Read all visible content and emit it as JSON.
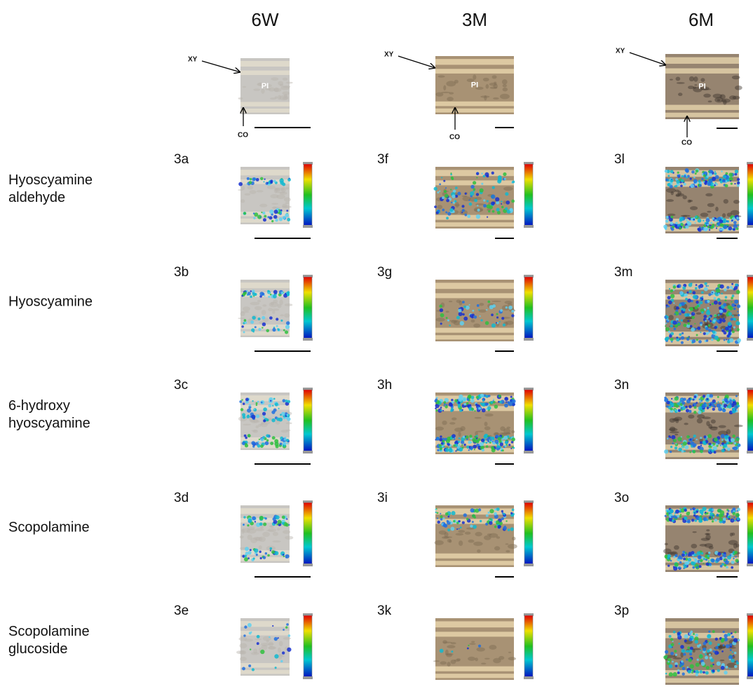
{
  "columns": [
    {
      "header": "6W",
      "xy": "XY",
      "pi": "PI",
      "co": "CO"
    },
    {
      "header": "3M",
      "xy": "XY",
      "pi": "PI",
      "co": "CO"
    },
    {
      "header": "6M",
      "xy": "XY",
      "pi": "PI",
      "co": "CO"
    }
  ],
  "rows": [
    {
      "label": [
        "Hyoscyamine",
        "aldehyde"
      ],
      "panels": [
        "3a",
        "3f",
        "3l"
      ]
    },
    {
      "label": [
        "Hyoscyamine"
      ],
      "panels": [
        "3b",
        "3g",
        "3m"
      ]
    },
    {
      "label": [
        "6-hydroxy",
        "hyoscyamine"
      ],
      "panels": [
        "3c",
        "3h",
        "3n"
      ]
    },
    {
      "label": [
        "Scopolamine"
      ],
      "panels": [
        "3d",
        "3i",
        "3o"
      ]
    },
    {
      "label": [
        "Scopolamine",
        "glucoside"
      ],
      "panels": [
        "3e",
        "3k",
        "3p"
      ]
    }
  ]
}
